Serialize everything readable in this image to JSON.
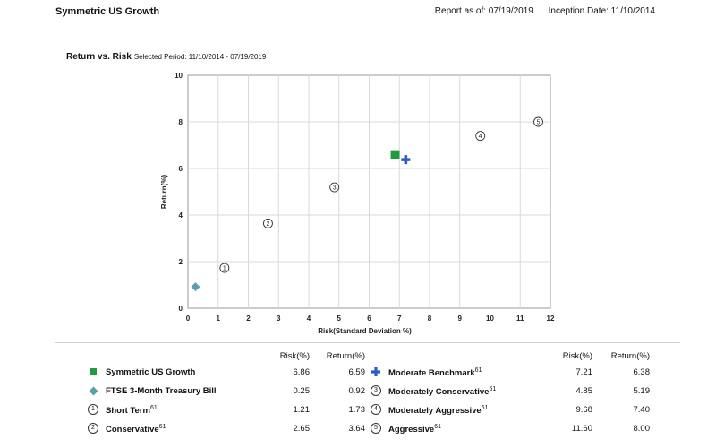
{
  "header": {
    "fund_name": "Symmetric US Growth",
    "report_as_of": "Report as of: 07/19/2019",
    "inception_date": "Inception Date: 11/10/2014"
  },
  "section": {
    "title": "Return vs. Risk",
    "period": "Selected Period:  11/10/2014 - 07/19/2019"
  },
  "chart_data": {
    "type": "scatter",
    "xlabel": "Risk(Standard Deviation %)",
    "ylabel": "Return(%)",
    "xlim": [
      0,
      12
    ],
    "ylim": [
      0,
      10
    ],
    "xticks": [
      "0",
      "1",
      "2",
      "3",
      "4",
      "5",
      "6",
      "7",
      "8",
      "9",
      "10",
      "11",
      "12"
    ],
    "yticks": [
      "0",
      "2",
      "4",
      "6",
      "8",
      "10"
    ],
    "grid": true,
    "points": [
      {
        "name": "Symmetric US Growth",
        "x": 6.86,
        "y": 6.59,
        "marker": "square",
        "color": "#1f9a3c"
      },
      {
        "name": "FTSE 3-Month Treasury Bill",
        "x": 0.25,
        "y": 0.92,
        "marker": "diamond",
        "color": "#5aa0ad"
      },
      {
        "name": "Short Term",
        "x": 1.21,
        "y": 1.73,
        "marker": "circle",
        "label": "1"
      },
      {
        "name": "Conservative",
        "x": 2.65,
        "y": 3.64,
        "marker": "circle",
        "label": "2"
      },
      {
        "name": "Moderate Benchmark",
        "x": 7.21,
        "y": 6.38,
        "marker": "cross",
        "color": "#2b5fc4"
      },
      {
        "name": "Moderately Conservative",
        "x": 4.85,
        "y": 5.19,
        "marker": "circle",
        "label": "3"
      },
      {
        "name": "Moderately Aggressive",
        "x": 9.68,
        "y": 7.4,
        "marker": "circle",
        "label": "4"
      },
      {
        "name": "Aggressive",
        "x": 11.6,
        "y": 8.0,
        "marker": "circle",
        "label": "5"
      }
    ]
  },
  "legend": {
    "risk_header": "Risk(%)",
    "return_header": "Return(%)",
    "superscript": "61",
    "left": [
      {
        "name": "Symmetric US Growth",
        "risk": "6.86",
        "return": "6.59",
        "sup": false
      },
      {
        "name": "FTSE 3-Month Treasury Bill",
        "risk": "0.25",
        "return": "0.92",
        "sup": false
      },
      {
        "name": "Short Term",
        "risk": "1.21",
        "return": "1.73",
        "sup": true
      },
      {
        "name": "Conservative",
        "risk": "2.65",
        "return": "3.64",
        "sup": true
      }
    ],
    "right": [
      {
        "name": "Moderate Benchmark",
        "risk": "7.21",
        "return": "6.38",
        "sup": true
      },
      {
        "name": "Moderately Conservative",
        "risk": "4.85",
        "return": "5.19",
        "sup": true
      },
      {
        "name": "Moderately Aggressive",
        "risk": "9.68",
        "return": "7.40",
        "sup": true
      },
      {
        "name": "Aggressive",
        "risk": "11.60",
        "return": "8.00",
        "sup": true
      }
    ]
  }
}
